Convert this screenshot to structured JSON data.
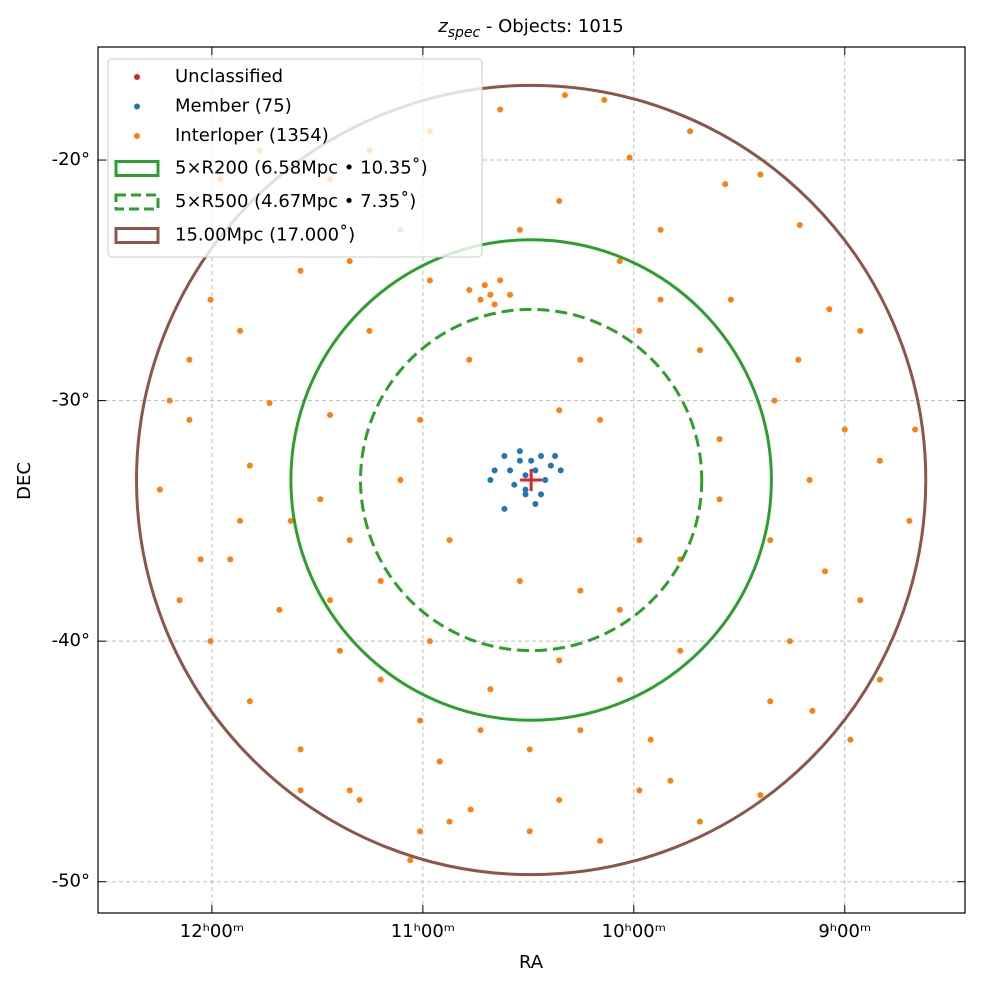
{
  "chart_data": {
    "type": "scatter",
    "title": [
      "z",
      "spec",
      " - Objects: 1015"
    ],
    "x_label": "RA",
    "y_label": "DEC",
    "xlim": [
      188.1,
      126.45
    ],
    "ylim": [
      -51.3,
      -15.3
    ],
    "xticks": [
      {
        "value": 180,
        "label": "12ʰ00ᵐ"
      },
      {
        "value": 165,
        "label": "11ʰ00ᵐ"
      },
      {
        "value": 150,
        "label": "10ʰ00ᵐ"
      },
      {
        "value": 135,
        "label": "9ʰ00ᵐ"
      }
    ],
    "yticks": [
      {
        "value": -20,
        "label": "-20°"
      },
      {
        "value": -30,
        "label": "-30°"
      },
      {
        "value": -40,
        "label": "-40°"
      },
      {
        "value": -50,
        "label": "-50°"
      }
    ],
    "grid": true,
    "legend": "upper left",
    "center": [
      157.3,
      -33.3
    ],
    "center_color": "#d62728",
    "series": [
      {
        "name": "Unclassified",
        "color": "#d62728",
        "x": [],
        "y": []
      },
      {
        "name": "Member (75)",
        "color": "#1f77b4",
        "x": [
          158.1,
          156.6,
          158.8,
          157.7,
          157.0,
          156.3,
          158.5,
          159.2,
          155.9,
          159.9,
          155.2,
          157.7,
          157.3,
          156.6,
          159.2,
          158.1,
          160.2,
          155.6,
          157.0,
          157.7
        ],
        "y": [
          -32.5,
          -32.3,
          -32.9,
          -33.1,
          -32.9,
          -33.3,
          -33.5,
          -34.5,
          -32.7,
          -32.9,
          -32.9,
          -33.9,
          -32.5,
          -33.9,
          -32.3,
          -32.1,
          -33.3,
          -32.3,
          -34.3,
          -33.7
        ]
      },
      {
        "name": "Interloper (1354)",
        "color": "#ff7f0e",
        "x": [
          154.9,
          152.1,
          146.0,
          143.5,
          141.0,
          138.2,
          136.1,
          133.9,
          135.0,
          132.5,
          130.4,
          130.0,
          136.4,
          138.9,
          140.3,
          137.3,
          141.0,
          145.3,
          149.6,
          152.4,
          157.4,
          161.6,
          165.2,
          170.2,
          173.7,
          177.3,
          180.1,
          180.8,
          183.7,
          181.6,
          178.0,
          173.7,
          170.2,
          166.6,
          164.5,
          160.6,
          160.2,
          160.9,
          159.5,
          159.9,
          161.7,
          158.8,
          158.1,
          155.3,
          151.0,
          148.1,
          145.3,
          149.6,
          153.8,
          161.7,
          165.2,
          166.6,
          163.1,
          158.1,
          153.8,
          151.0,
          149.6,
          146.7,
          143.9,
          143.9,
          152.4,
          155.3,
          170.2,
          172.3,
          174.4,
          178.0,
          178.7,
          168.0,
          164.5,
          160.2,
          155.3,
          151.0,
          146.7,
          160.9,
          163.8,
          165.2,
          157.4,
          153.8,
          148.8,
          168.0,
          170.9,
          175.2,
          171.6,
          163.1,
          155.3,
          147.4,
          177.3,
          175.9,
          171.6,
          168.8,
          171.6,
          176.6,
          179.4,
          168.8,
          164.5,
          159.5,
          150.3,
          148.1,
          143.1,
          138.3,
          140.0,
          137.5,
          140.3,
          133.9,
          132.5,
          134.6,
          182.3,
          183.0,
          180.1,
          181.6,
          169.5,
          173.7,
          165.9
        ],
        "y": [
          -17.3,
          -17.5,
          -18.8,
          -21.0,
          -20.6,
          -22.7,
          -26.2,
          -27.1,
          -31.2,
          -32.5,
          -35.0,
          -31.2,
          -37.1,
          -40.0,
          -42.5,
          -42.9,
          -46.4,
          -47.5,
          -46.2,
          -48.3,
          -47.9,
          -47.0,
          -47.9,
          -46.2,
          -44.5,
          -42.5,
          -40.0,
          -36.6,
          -33.7,
          -30.8,
          -27.1,
          -24.6,
          -24.2,
          -22.9,
          -25.0,
          -25.2,
          -25.6,
          -25.8,
          -25.0,
          -26.0,
          -25.4,
          -25.6,
          -22.9,
          -21.7,
          -24.2,
          -25.8,
          -27.9,
          -27.1,
          -28.3,
          -28.3,
          -30.8,
          -33.3,
          -35.8,
          -37.5,
          -37.9,
          -38.7,
          -35.8,
          -36.6,
          -34.1,
          -31.6,
          -30.8,
          -30.4,
          -35.8,
          -34.1,
          -35.0,
          -35.0,
          -36.6,
          -37.5,
          -40.0,
          -42.0,
          -40.8,
          -41.6,
          -40.4,
          -43.7,
          -45.0,
          -43.3,
          -44.5,
          -43.7,
          -44.1,
          -41.6,
          -40.4,
          -38.7,
          -38.3,
          -47.5,
          -46.6,
          -45.8,
          -32.7,
          -30.1,
          -30.6,
          -27.1,
          -20.8,
          -19.6,
          -20.8,
          -19.6,
          -18.8,
          -17.9,
          -19.9,
          -22.9,
          -25.8,
          -28.3,
          -30.0,
          -33.3,
          -35.8,
          -38.3,
          -41.6,
          -44.1,
          -38.3,
          -30.0,
          -25.8,
          -28.3,
          -46.6,
          -46.2,
          -49.1
        ]
      }
    ],
    "circles": [
      {
        "label": "5×R200 (6.58Mpc • 10.35˚)",
        "radius": 10.35,
        "color": "#2ca02c",
        "dashed": false
      },
      {
        "label": "5×R500 (4.67Mpc • 7.35˚)",
        "radius": 7.35,
        "color": "#2ca02c",
        "dashed": true
      },
      {
        "label": "15.00Mpc (17.000˚)",
        "radius": 17.0,
        "color": "#8c564b",
        "dashed": false
      }
    ]
  }
}
